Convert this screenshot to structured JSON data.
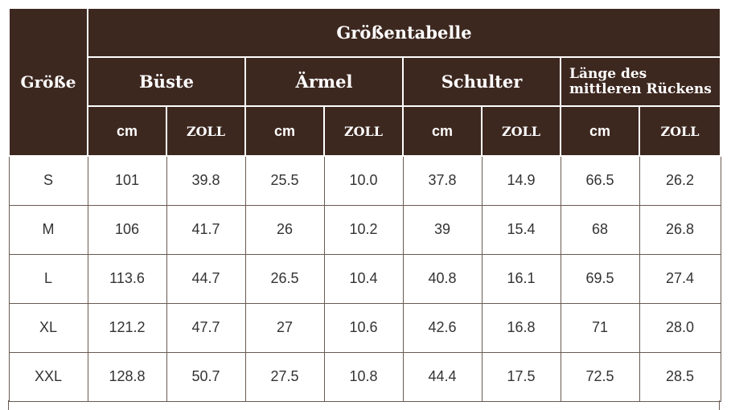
{
  "table": {
    "title": "Größentabelle",
    "size_label": "Größe",
    "groups": [
      "Büste",
      "Ärmel",
      "Schulter",
      "Länge des mittleren Rückens"
    ],
    "unit_cm": "cm",
    "unit_zoll": "ZOLL",
    "rows": [
      {
        "size": "S",
        "values": [
          "101",
          "39.8",
          "25.5",
          "10.0",
          "37.8",
          "14.9",
          "66.5",
          "26.2"
        ]
      },
      {
        "size": "M",
        "values": [
          "106",
          "41.7",
          "26",
          "10.2",
          "39",
          "15.4",
          "68",
          "26.8"
        ]
      },
      {
        "size": "L",
        "values": [
          "113.6",
          "44.7",
          "26.5",
          "10.4",
          "40.8",
          "16.1",
          "69.5",
          "27.4"
        ]
      },
      {
        "size": "XL",
        "values": [
          "121.2",
          "47.7",
          "27",
          "10.6",
          "42.6",
          "16.8",
          "71",
          "28.0"
        ]
      },
      {
        "size": "XXL",
        "values": [
          "128.8",
          "50.7",
          "27.5",
          "10.8",
          "44.4",
          "17.5",
          "72.5",
          "28.5"
        ]
      }
    ]
  }
}
